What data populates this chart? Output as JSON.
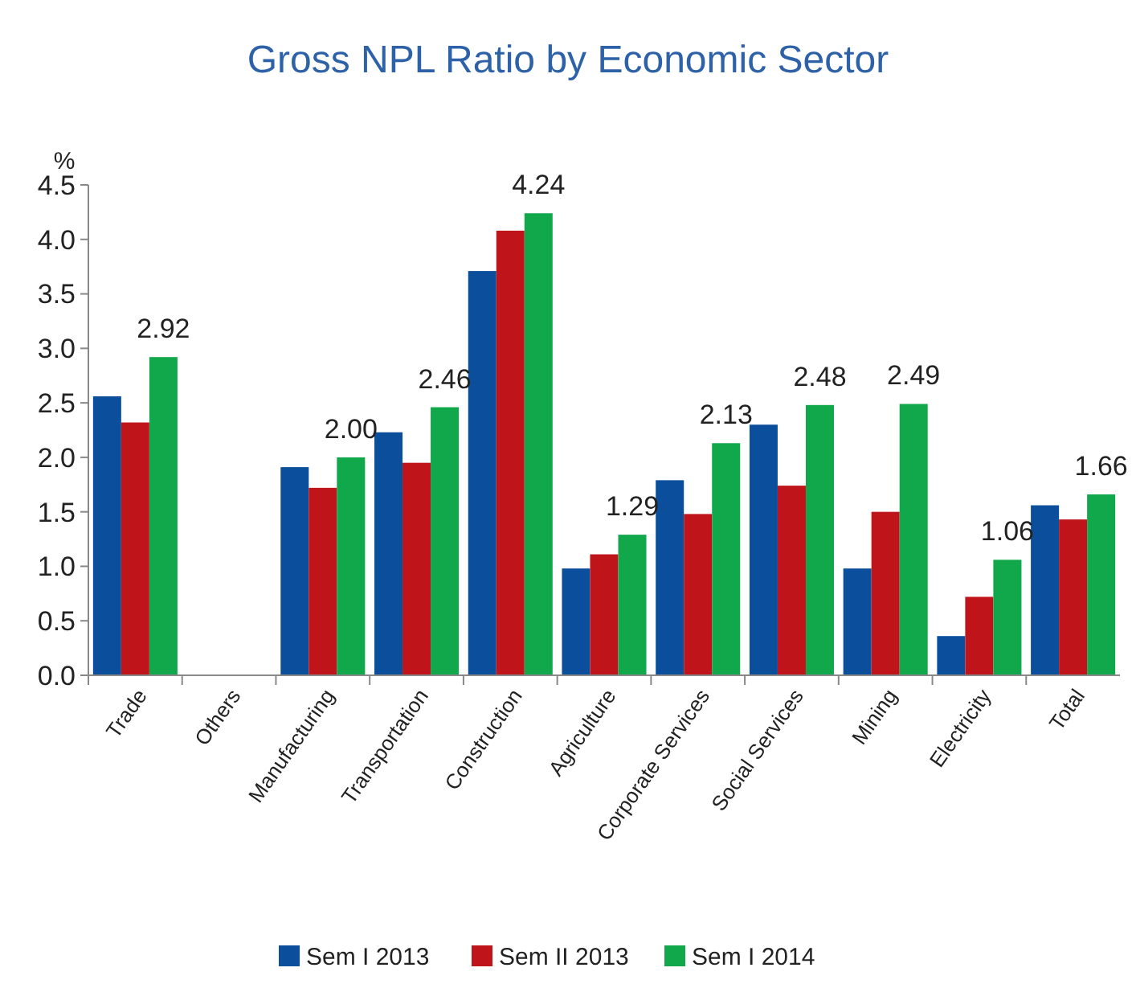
{
  "chart_data": {
    "type": "bar",
    "title": "Gross NPL Ratio by Economic Sector",
    "ylabel": "%",
    "categories": [
      "Trade",
      "Others",
      "Manufacturing",
      "Transportation",
      "Construction",
      "Agriculture",
      "Corporate Services",
      "Social Services",
      "Mining",
      "Electricity",
      "Total"
    ],
    "series": [
      {
        "name": "Sem I 2013",
        "color": "#0b4f9c",
        "values": [
          2.56,
          null,
          1.91,
          2.23,
          3.71,
          0.98,
          1.79,
          2.3,
          0.98,
          0.36,
          1.56
        ]
      },
      {
        "name": "Sem II 2013",
        "color": "#c0141b",
        "values": [
          2.32,
          null,
          1.72,
          1.95,
          4.08,
          1.11,
          1.48,
          1.74,
          1.5,
          0.72,
          1.43
        ]
      },
      {
        "name": "Sem I 2014",
        "color": "#10a84a",
        "values": [
          2.92,
          null,
          2.0,
          2.46,
          4.24,
          1.29,
          2.13,
          2.48,
          2.49,
          1.06,
          1.66
        ],
        "value_labels": [
          "2.92",
          null,
          "2.00",
          "2.46",
          "4.24",
          "1.29",
          "2.13",
          "2.48",
          "2.49",
          "1.06",
          "1.66"
        ]
      }
    ],
    "ylim": [
      0,
      4.5
    ],
    "yticks": [
      {
        "value": 0,
        "label": "0.0"
      },
      {
        "value": 0.5,
        "label": "0.5"
      },
      {
        "value": 1,
        "label": "1.0"
      },
      {
        "value": 1.5,
        "label": "1.5"
      },
      {
        "value": 2,
        "label": "2.0"
      },
      {
        "value": 2.5,
        "label": "2.5"
      },
      {
        "value": 3,
        "label": "3.0"
      },
      {
        "value": 3.5,
        "label": "3.5"
      },
      {
        "value": 4,
        "label": "4.0"
      },
      {
        "value": 4.5,
        "label": "4.5"
      }
    ],
    "grid": false,
    "legend": "bottom"
  }
}
